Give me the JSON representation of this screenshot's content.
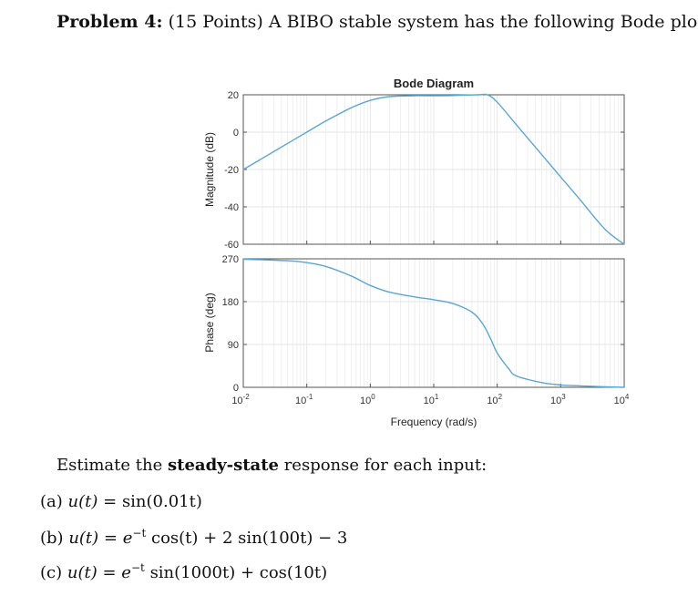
{
  "problem": {
    "label": "Problem 4:",
    "points": "(15 Points)",
    "statement": "A BIBO stable system has the following Bode plot:"
  },
  "instruction": {
    "prefix": "Estimate the",
    "emphasis": "steady-state",
    "suffix": "response for each input:"
  },
  "inputs": [
    {
      "label": "(a)",
      "lhs": "u(t) =",
      "rhs": "sin(0.01t)"
    },
    {
      "label": "(b)",
      "lhs": "u(t) =",
      "rhs_parts": [
        "e",
        "−t",
        " cos(t) + 2 sin(100t) − 3"
      ]
    },
    {
      "label": "(c)",
      "lhs": "u(t) =",
      "rhs_parts": [
        "e",
        "−t",
        " sin(1000t) + cos(10t)"
      ]
    }
  ],
  "colors": {
    "curve": "#5aa6d6",
    "axis": "#555555",
    "grid": "#e6e6e6"
  },
  "chart_data": [
    {
      "type": "line",
      "title": "Bode Diagram",
      "ylabel": "Magnitude (dB)",
      "xscale": "log",
      "xlim": [
        0.01,
        10000
      ],
      "ylim": [
        -60,
        20
      ],
      "yticks": [
        20,
        0,
        -20,
        -40,
        -60
      ],
      "grid": true,
      "series": [
        {
          "x": [
            0.01,
            0.02,
            0.05,
            0.1,
            0.2,
            0.5,
            1,
            2,
            5,
            10,
            20,
            50,
            70,
            100,
            200,
            500,
            1000,
            2000,
            5000,
            10000
          ],
          "y": [
            -20,
            -14,
            -6,
            0,
            6,
            13,
            17,
            19,
            19.5,
            19.5,
            19.6,
            20,
            20,
            16,
            4,
            -12,
            -24,
            -36,
            -52,
            -60
          ]
        }
      ]
    },
    {
      "type": "line",
      "xlabel": "Frequency (rad/s)",
      "ylabel": "Phase (deg)",
      "xscale": "log",
      "xlim": [
        0.01,
        10000
      ],
      "ylim": [
        0,
        270
      ],
      "yticks": [
        270,
        180,
        90,
        0
      ],
      "xticks": [
        {
          "base": "10",
          "exp": "-2",
          "value": 0.01
        },
        {
          "base": "10",
          "exp": "-1",
          "value": 0.1
        },
        {
          "base": "10",
          "exp": "0",
          "value": 1
        },
        {
          "base": "10",
          "exp": "1",
          "value": 10
        },
        {
          "base": "10",
          "exp": "2",
          "value": 100
        },
        {
          "base": "10",
          "exp": "3",
          "value": 1000
        },
        {
          "base": "10",
          "exp": "4",
          "value": 10000
        }
      ],
      "grid": true,
      "series": [
        {
          "x": [
            0.01,
            0.02,
            0.05,
            0.1,
            0.2,
            0.5,
            1,
            2,
            5,
            10,
            20,
            40,
            60,
            80,
            100,
            150,
            200,
            500,
            1000,
            2000,
            5000,
            10000
          ],
          "y": [
            269,
            268,
            266,
            262,
            254,
            234,
            214,
            200,
            190,
            184,
            176,
            158,
            132,
            100,
            72,
            40,
            24,
            10,
            5,
            3,
            1,
            0
          ]
        }
      ]
    }
  ]
}
